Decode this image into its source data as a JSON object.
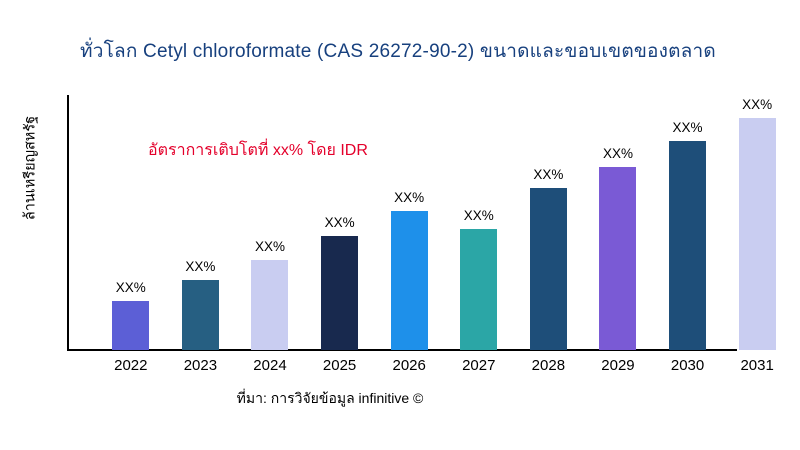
{
  "header": {
    "title": "ทั่วโลก Cetyl chloroformate (CAS 26272-90-2) ขนาดและขอบเขตของตลาด"
  },
  "annotation": {
    "text": "อัตราการเติบโตที่ xx% โดย IDR"
  },
  "footer": {
    "source": "ที่มา: การวิจัยข้อมูล infinitive ©"
  },
  "colors": {
    "title": "#17407e",
    "annotation": "#e4002b",
    "axis": "#000000",
    "label_text": "#000000"
  },
  "chart_data": {
    "type": "bar",
    "title": "ทั่วโลก Cetyl chloroformate (CAS 26272-90-2) ขนาดและขอบเขตของตลาด",
    "xlabel": "",
    "ylabel": "ล้านเหรียญสหรัฐ",
    "categories": [
      "2022",
      "2023",
      "2024",
      "2025",
      "2026",
      "2027",
      "2028",
      "2029",
      "2030",
      "2031"
    ],
    "values": [
      21,
      30,
      39,
      49,
      60,
      52,
      70,
      79,
      90,
      100
    ],
    "value_labels": [
      "XX%",
      "XX%",
      "XX%",
      "XX%",
      "XX%",
      "XX%",
      "XX%",
      "XX%",
      "XX%",
      "XX%"
    ],
    "bar_colors": [
      "#5c5fd6",
      "#265f82",
      "#c9cdf1",
      "#18294e",
      "#1e90ea",
      "#2ba6a6",
      "#1e4e79",
      "#7a5ad5",
      "#1e4e79",
      "#c9cdf1"
    ],
    "ylim": [
      0,
      110
    ],
    "grid": false,
    "legend": false,
    "annotation": "อัตราการเติบโตที่ xx% โดย IDR"
  }
}
